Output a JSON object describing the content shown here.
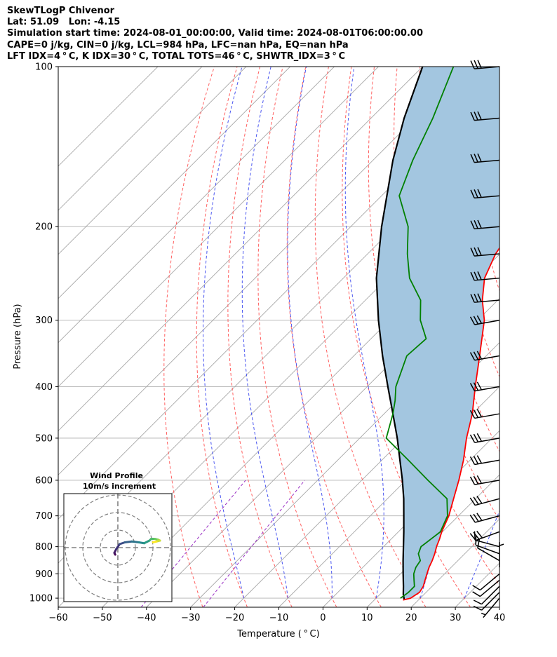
{
  "header": {
    "line1": "SkewTLogP Chivenor",
    "line2": "Lat: 51.09   Lon: -4.15",
    "line3": "Simulation start time: 2024-08-01_00:00:00, Valid time: 2024-08-01T06:00:00.00",
    "line4": "CAPE=0 j/kg, CIN=0 j/kg, LCL=984 hPa, LFC=nan hPa, EQ=nan hPa",
    "line5": "LFT IDX=4$^\\circ$C, K IDX=30$^\\circ$C, TOTAL TOTS=46$^\\circ$C, SHWTR_IDX=3$^\\circ$C"
  },
  "header_display": {
    "line5": "LFT IDX=4 ° C, K IDX=30 ° C, TOTAL TOTS=46 ° C, SHWTR_IDX=3 ° C"
  },
  "colors": {
    "temperature": "#ff0000",
    "dewpoint": "#008000",
    "parcel": "#000000",
    "cape_fill": "#a3c6e0",
    "dry_adiabats": "#ff6060",
    "moist_adiabats": "#4a56f0",
    "mixing_ratio": "#9a2fc4",
    "isotherms": "#a8a8a8"
  },
  "chart_data": [
    {
      "type": "line",
      "title": "",
      "xlabel": "Temperature ($^\\circ$C)",
      "xlabel_display": "Temperature ( ° C)",
      "ylabel": "Pressure (hPa)",
      "xlim": [
        -60,
        40
      ],
      "ylim": [
        1040,
        100
      ],
      "y_scale": "log",
      "skew": true,
      "x_ticks": [
        -60,
        -50,
        -40,
        -30,
        -20,
        -10,
        0,
        10,
        20,
        30,
        40
      ],
      "y_ticks": [
        100,
        200,
        300,
        400,
        500,
        600,
        700,
        800,
        900,
        1000
      ],
      "grid": true,
      "series": [
        {
          "name": "temperature",
          "p": [
            1008,
            1000,
            975,
            950,
            925,
            900,
            875,
            850,
            825,
            800,
            775,
            750,
            700,
            650,
            600,
            550,
            500,
            450,
            400,
            350,
            300,
            275,
            250,
            225,
            200,
            175,
            150,
            125,
            100
          ],
          "t": [
            16.5,
            17.8,
            18.5,
            18.0,
            17.0,
            16.0,
            15.0,
            14.2,
            13.2,
            12.0,
            11.0,
            9.8,
            7.8,
            5.0,
            2.0,
            -1.5,
            -5.8,
            -10.0,
            -15.5,
            -21.5,
            -28.5,
            -33.5,
            -38.0,
            -41.0,
            -43.0,
            -45.0,
            -47.5,
            -51.5,
            -55.0
          ]
        },
        {
          "name": "dewpoint",
          "p": [
            1000,
            975,
            950,
            925,
            900,
            875,
            850,
            825,
            800,
            775,
            750,
            700,
            650,
            600,
            550,
            500,
            450,
            425,
            400,
            350,
            325,
            300,
            275,
            250,
            225,
            200,
            175,
            150,
            125,
            100
          ],
          "t": [
            15.5,
            16.0,
            16.0,
            14.5,
            13.0,
            12.0,
            11.5,
            9.5,
            8.5,
            9.0,
            9.5,
            7.5,
            3.5,
            -5.0,
            -14.0,
            -24.0,
            -28.0,
            -30.5,
            -33.5,
            -38.0,
            -37.5,
            -43.0,
            -47.5,
            -55.0,
            -61.0,
            -67.0,
            -76.0,
            -81.0,
            -86.0,
            -93.0
          ]
        },
        {
          "name": "parcel",
          "p": [
            1008,
            984,
            950,
            900,
            850,
            800,
            750,
            700,
            650,
            600,
            550,
            500,
            450,
            400,
            350,
            300,
            250,
            200,
            150,
            125,
            100
          ],
          "t": [
            16.8,
            15.3,
            13.5,
            10.6,
            7.6,
            4.5,
            1.2,
            -2.4,
            -6.3,
            -10.8,
            -15.9,
            -21.5,
            -28.0,
            -35.3,
            -43.5,
            -52.5,
            -62.5,
            -73.0,
            -85.5,
            -92.5,
            -100.0
          ]
        }
      ],
      "wind_barbs": {
        "p": [
          1000,
          975,
          950,
          925,
          900,
          875,
          850,
          825,
          800,
          750,
          700,
          650,
          600,
          550,
          500,
          450,
          400,
          350,
          300,
          275,
          250,
          225,
          200,
          175,
          150,
          125,
          100
        ],
        "speed_kt": [
          5,
          10,
          10,
          10,
          10,
          5,
          10,
          10,
          10,
          30,
          30,
          30,
          30,
          30,
          30,
          30,
          30,
          30,
          30,
          30,
          30,
          30,
          30,
          30,
          30,
          30,
          30
        ],
        "direction_deg": [
          220,
          225,
          225,
          230,
          230,
          0,
          300,
          290,
          285,
          250,
          255,
          255,
          260,
          260,
          260,
          260,
          260,
          260,
          260,
          265,
          265,
          265,
          265,
          265,
          265,
          265,
          265
        ]
      }
    },
    {
      "type": "line",
      "title": "Wind Profile\n10m/s increment",
      "title_line1": "Wind Profile",
      "title_line2": "10m/s increment",
      "rings_ms": [
        10,
        20,
        30
      ],
      "hodograph_uv": [
        [
          -1.5,
          -4
        ],
        [
          -2,
          -3
        ],
        [
          -1,
          -1
        ],
        [
          1,
          2
        ],
        [
          4,
          3
        ],
        [
          8,
          3.5
        ],
        [
          12,
          3
        ],
        [
          15,
          2.5
        ],
        [
          18,
          4
        ],
        [
          19,
          5
        ],
        [
          21,
          5
        ],
        [
          23,
          4.5
        ],
        [
          24,
          4
        ],
        [
          22,
          3.5
        ],
        [
          20,
          3
        ]
      ]
    }
  ]
}
